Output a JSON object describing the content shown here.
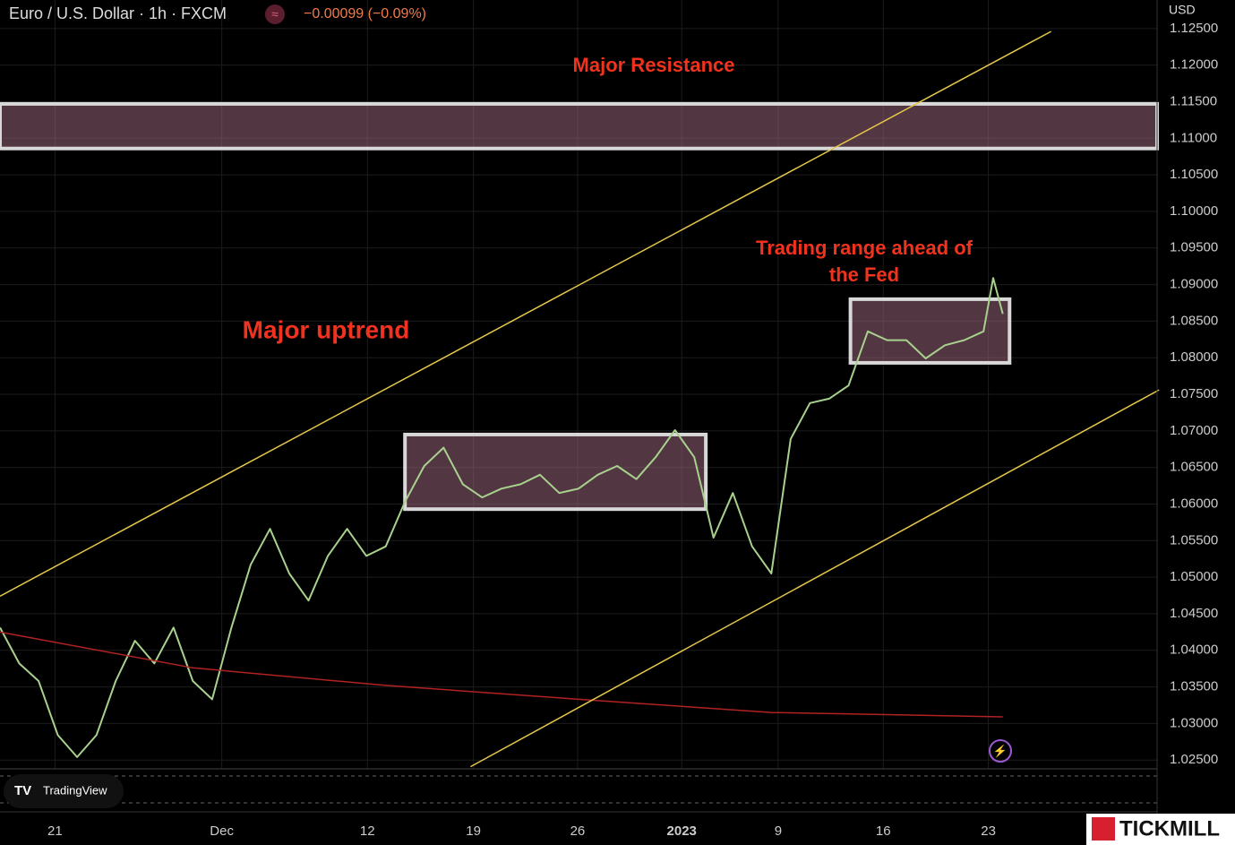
{
  "chart_data": {
    "type": "line",
    "title": "Euro / U.S. Dollar · 1h · FXCM",
    "change": "−0.00099 (−0.09%)",
    "currency": "USD",
    "xlim": [
      0,
      120
    ],
    "ylim": [
      1.0238,
      1.1289
    ],
    "xticks": [
      {
        "value": 5.7,
        "label": "21"
      },
      {
        "value": 23,
        "label": "Dec"
      },
      {
        "value": 38.1,
        "label": "12"
      },
      {
        "value": 49.1,
        "label": "19"
      },
      {
        "value": 59.9,
        "label": "26"
      },
      {
        "value": 70.7,
        "label": "2023"
      },
      {
        "value": 80.7,
        "label": "9"
      },
      {
        "value": 91.6,
        "label": "16"
      },
      {
        "value": 102.5,
        "label": "23"
      }
    ],
    "yticks": [
      {
        "value": 1.125,
        "label": "1.12500"
      },
      {
        "value": 1.12,
        "label": "1.12000"
      },
      {
        "value": 1.115,
        "label": "1.11500"
      },
      {
        "value": 1.11,
        "label": "1.11000"
      },
      {
        "value": 1.105,
        "label": "1.10500"
      },
      {
        "value": 1.1,
        "label": "1.10000"
      },
      {
        "value": 1.095,
        "label": "1.09500"
      },
      {
        "value": 1.09,
        "label": "1.09000"
      },
      {
        "value": 1.085,
        "label": "1.08500"
      },
      {
        "value": 1.08,
        "label": "1.08000"
      },
      {
        "value": 1.075,
        "label": "1.07500"
      },
      {
        "value": 1.07,
        "label": "1.07000"
      },
      {
        "value": 1.065,
        "label": "1.06500"
      },
      {
        "value": 1.06,
        "label": "1.06000"
      },
      {
        "value": 1.055,
        "label": "1.05500"
      },
      {
        "value": 1.05,
        "label": "1.05000"
      },
      {
        "value": 1.045,
        "label": "1.04500"
      },
      {
        "value": 1.04,
        "label": "1.04000"
      },
      {
        "value": 1.035,
        "label": "1.03500"
      },
      {
        "value": 1.03,
        "label": "1.03000"
      },
      {
        "value": 1.025,
        "label": "1.02500"
      }
    ],
    "grid": true,
    "series": [
      {
        "color": "#a9d18e",
        "x": [
          0,
          2,
          4,
          6,
          8,
          10,
          12,
          14,
          16,
          18,
          20,
          22,
          24,
          26,
          28,
          30,
          32,
          34,
          36,
          38,
          40,
          42,
          44,
          46,
          48,
          50,
          52,
          54,
          56,
          58,
          60,
          62,
          64,
          66,
          68,
          70,
          72,
          74,
          76,
          78,
          80,
          82,
          84,
          86,
          88,
          90,
          92,
          94,
          96,
          98,
          100,
          102,
          103,
          104
        ],
        "values": [
          1.0431,
          1.0382,
          1.0358,
          1.0284,
          1.0254,
          1.0284,
          1.0358,
          1.0413,
          1.0382,
          1.0431,
          1.0358,
          1.0333,
          1.0431,
          1.0517,
          1.0566,
          1.0505,
          1.0468,
          1.0529,
          1.0566,
          1.0529,
          1.0542,
          1.0603,
          1.0652,
          1.0677,
          1.0627,
          1.0609,
          1.0621,
          1.0627,
          1.064,
          1.0615,
          1.0621,
          1.064,
          1.0652,
          1.0634,
          1.0664,
          1.0701,
          1.0664,
          1.0554,
          1.0615,
          1.0542,
          1.0505,
          1.0689,
          1.0738,
          1.0744,
          1.0762,
          1.0836,
          1.0824,
          1.0824,
          1.0799,
          1.0817,
          1.0824,
          1.0836,
          1.0909,
          1.086
        ]
      },
      {
        "color": "#b22222",
        "x": [
          0,
          20,
          40,
          60,
          80,
          104
        ],
        "values": [
          1.0425,
          1.0376,
          1.0352,
          1.0333,
          1.0315,
          1.0309
        ]
      },
      {
        "color": "#e6c84a",
        "x": [
          0,
          109
        ],
        "values": [
          1.0474,
          1.1246
        ]
      },
      {
        "color": "#e6c84a",
        "x": [
          48.8,
          120.2
        ],
        "values": [
          1.0241,
          1.0756
        ]
      }
    ],
    "zones": [
      {
        "x": [
          0,
          120
        ],
        "values": [
          1.1147,
          1.1086
        ]
      },
      {
        "x": [
          42,
          73.2
        ],
        "values": [
          1.0695,
          1.0593
        ]
      },
      {
        "x": [
          88.2,
          104.7
        ],
        "values": [
          1.088,
          1.0793
        ]
      }
    ],
    "annotations": [
      "Major Resistance",
      "Major uptrend",
      "Trading range ahead of",
      "the Fed"
    ],
    "branding": [
      "TradingView",
      "TICKMILL"
    ]
  }
}
